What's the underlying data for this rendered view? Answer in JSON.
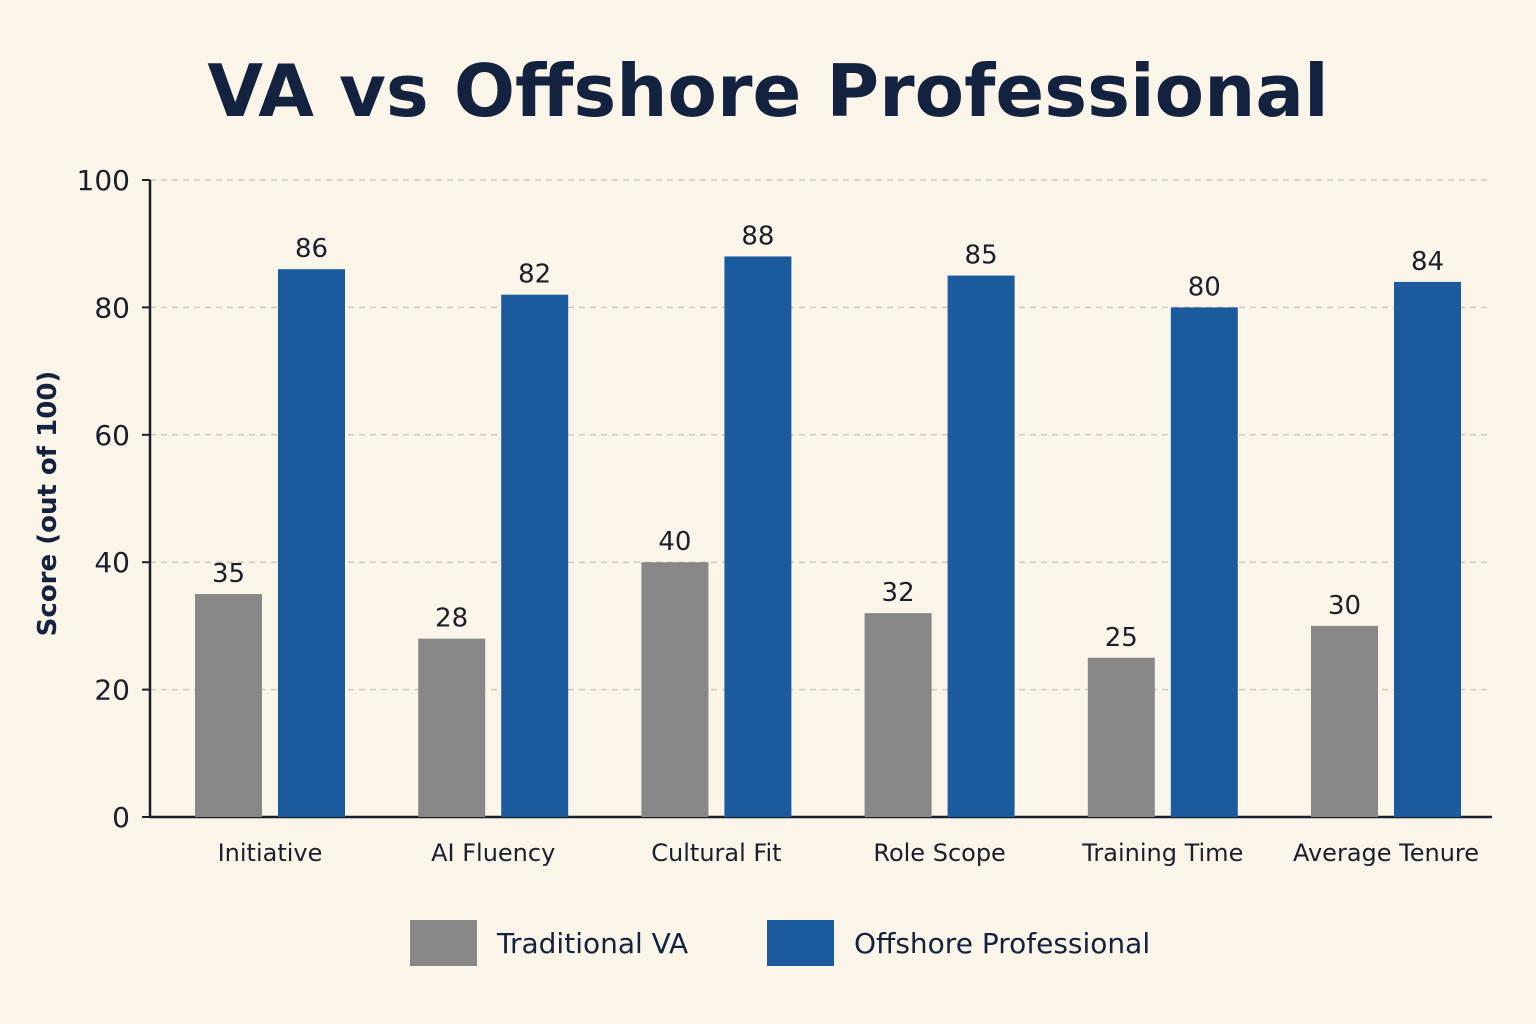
{
  "chart_data": {
    "type": "bar",
    "title": "VA vs Offshore Professional",
    "xlabel": "",
    "ylabel": "Score (out of 100)",
    "ylim": [
      0,
      100
    ],
    "yticks": [
      0,
      20,
      40,
      60,
      80,
      100
    ],
    "grid": true,
    "legend_position": "bottom",
    "categories": [
      "Initiative",
      "AI Fluency",
      "Cultural Fit",
      "Role Scope",
      "Training Time",
      "Average Tenure"
    ],
    "series": [
      {
        "name": "Traditional VA",
        "color": "#878787",
        "values": [
          35,
          28,
          40,
          32,
          25,
          30
        ]
      },
      {
        "name": "Offshore Professional",
        "color": "#1c5a9e",
        "values": [
          86,
          82,
          88,
          85,
          80,
          84
        ]
      }
    ]
  }
}
